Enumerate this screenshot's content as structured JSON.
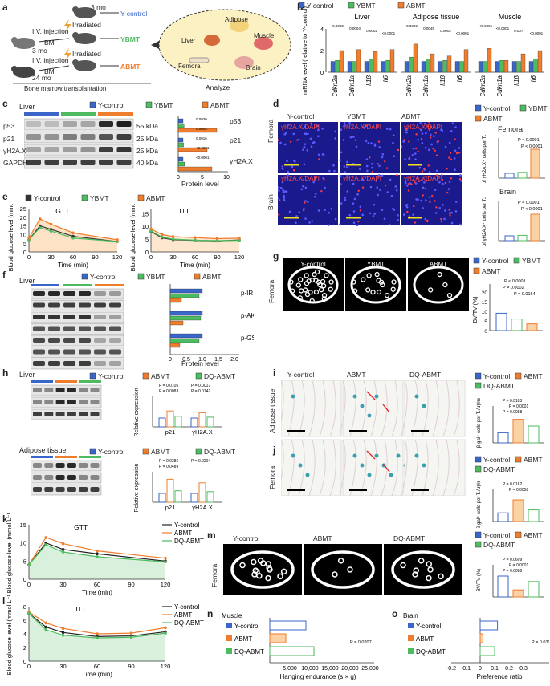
{
  "colors": {
    "ycontrol": "#3a66c9",
    "ybmt": "#4dbb5f",
    "abmt": "#ef7d2e",
    "dqabmt": "#4dbb5f",
    "black": "#222222",
    "gtt_fill": "#fde2c6",
    "itt_fill": "#fde8cf",
    "k_fill": "#d9f1dc"
  },
  "panels": {
    "a": "a",
    "b": "b",
    "c": "c",
    "d": "d",
    "e": "e",
    "f": "f",
    "g": "g",
    "h": "h",
    "i": "i",
    "j": "j",
    "k": "k",
    "l": "l",
    "m": "m",
    "n": "n",
    "o": "o"
  },
  "legend": {
    "y_control": "Y-control",
    "ybmt": "YBMT",
    "abmt": "ABMT",
    "dq_abmt": "DQ-ABMT"
  },
  "a": {
    "age_young": "3 mo",
    "age_old": "24 mo",
    "iv_injection": "I.V. injection",
    "bm": "BM",
    "irradiated": "Irradiated",
    "ycontrol": "Y-control",
    "ybmt": "YBMT",
    "abmt": "ABMT",
    "bmt": "Bone marrow transplantation",
    "analyze": "Analyze",
    "organs": [
      "Adipose",
      "Liver",
      "Muscle",
      "Femora",
      "Brain"
    ]
  },
  "b": {
    "ylabel": "mRNA level (relative to Y-control)",
    "tissues": [
      "Liver",
      "Adipose tissue",
      "Muscle"
    ],
    "genes": [
      "Cdkn2a",
      "Cdkn1a",
      "Il1β",
      "Il6"
    ],
    "yticks": [
      "0",
      "2",
      "4"
    ],
    "pvalues": [
      [
        "0.0002",
        "0.0004",
        "0.0002",
        "<0.0001"
      ],
      [
        "0.0002",
        "0.0049",
        "0.0002",
        "<0.0001"
      ],
      [
        "<0.0001",
        "<0.0001",
        "0.0077",
        "<0.0001"
      ]
    ]
  },
  "chart_data": [
    {
      "panel": "b",
      "type": "bar",
      "groups": [
        "Liver",
        "Adipose tissue",
        "Muscle"
      ],
      "categories": [
        "Cdkn2a",
        "Cdkn1a",
        "Il1β",
        "Il6"
      ],
      "ylabel": "mRNA level (relative to Y-control)",
      "ylim": [
        0,
        4
      ],
      "series": [
        {
          "name": "Y-control",
          "values": [
            [
              1,
              1,
              1,
              1
            ],
            [
              1,
              1,
              1,
              1
            ],
            [
              1,
              1,
              1,
              1
            ]
          ]
        },
        {
          "name": "YBMT",
          "values": [
            [
              1.1,
              1.0,
              1.2,
              1.1
            ],
            [
              1.4,
              1.2,
              1.1,
              1.0
            ],
            [
              1.0,
              1.1,
              1.0,
              1.2
            ]
          ]
        },
        {
          "name": "ABMT",
          "values": [
            [
              2.0,
              2.1,
              1.9,
              2.1
            ],
            [
              2.6,
              1.7,
              1.5,
              2.1
            ],
            [
              2.2,
              1.1,
              1.7,
              2.0
            ]
          ]
        }
      ]
    },
    {
      "panel": "e",
      "type": "line",
      "title": "GTT",
      "x": [
        0,
        15,
        30,
        60,
        120
      ],
      "xlabel": "Time (min)",
      "ylabel": "Blood glucose level (mmol L⁻¹)",
      "ylim": [
        0,
        25
      ],
      "series": [
        {
          "name": "Y-control",
          "values": [
            7,
            15,
            13,
            9,
            6
          ]
        },
        {
          "name": "YBMT",
          "values": [
            7,
            14,
            12,
            8,
            6
          ]
        },
        {
          "name": "ABMT",
          "values": [
            8,
            19,
            16,
            11,
            7
          ]
        }
      ]
    },
    {
      "panel": "e",
      "type": "line",
      "title": "ITT",
      "x": [
        0,
        15,
        30,
        60,
        90,
        120
      ],
      "xlabel": "Time (min)",
      "ylabel": "Blood glucose level (mmol L⁻¹)",
      "ylim": [
        0,
        17
      ],
      "series": [
        {
          "name": "Y-control",
          "values": [
            8,
            5.5,
            4.8,
            4.5,
            4.3,
            4.7
          ]
        },
        {
          "name": "YBMT",
          "values": [
            8.2,
            5.8,
            5.0,
            4.6,
            4.4,
            4.5
          ]
        },
        {
          "name": "ABMT",
          "values": [
            9,
            6.8,
            6.0,
            5.6,
            5.2,
            5.4
          ]
        }
      ]
    },
    {
      "panel": "k",
      "type": "line",
      "title": "GTT",
      "x": [
        0,
        15,
        30,
        60,
        120
      ],
      "xlabel": "Time (min)",
      "ylabel": "Blood glucose level (mmol L⁻¹)",
      "ylim": [
        0,
        15
      ],
      "series": [
        {
          "name": "Y-control",
          "values": [
            4,
            10,
            8.2,
            7,
            5
          ]
        },
        {
          "name": "ABMT",
          "values": [
            4,
            11.5,
            9.8,
            7.8,
            5.8
          ]
        },
        {
          "name": "DQ-ABMT",
          "values": [
            4,
            9.5,
            7.5,
            6.2,
            4.8
          ]
        }
      ]
    },
    {
      "panel": "l",
      "type": "line",
      "title": "ITT",
      "x": [
        0,
        15,
        30,
        60,
        90,
        120
      ],
      "xlabel": "Time (min)",
      "ylabel": "Blood glucose level (mmol L⁻¹)",
      "ylim": [
        0,
        8
      ],
      "series": [
        {
          "name": "Y-control",
          "values": [
            7,
            5,
            4.2,
            3.6,
            3.7,
            4.3
          ]
        },
        {
          "name": "ABMT",
          "values": [
            7.2,
            5.6,
            4.8,
            4.0,
            4.1,
            4.9
          ]
        },
        {
          "name": "DQ-ABMT",
          "values": [
            7,
            4.6,
            3.8,
            3.4,
            3.5,
            4.1
          ]
        }
      ]
    },
    {
      "panel": "n",
      "type": "bar",
      "orientation": "horizontal",
      "categories": [
        "Y-control",
        "ABMT",
        "DQ-ABMT"
      ],
      "values": [
        9000,
        4000,
        11000
      ],
      "xlabel": "Hanging endurance (s × g)",
      "xlim": [
        0,
        25000
      ],
      "pvalue": "P = 0.0207"
    },
    {
      "panel": "o",
      "type": "bar",
      "orientation": "horizontal",
      "categories": [
        "Y-control",
        "ABMT",
        "DQ-ABMT"
      ],
      "values": [
        0.12,
        0.02,
        0.1
      ],
      "xlabel": "Preference ratio",
      "xlim": [
        -0.2,
        0.3
      ],
      "pvalue": "P = 0.0307"
    }
  ],
  "c": {
    "tissue": "Liver",
    "proteins": [
      "p53",
      "p21",
      "γH2A.X",
      "GAPDH"
    ],
    "kda": [
      "55 kDa",
      "25 kDa",
      "25 kDa",
      "40 kDa"
    ],
    "plabels": [
      "p53",
      "p21",
      "γH2A.X"
    ],
    "pvals": [
      "0.0030",
      "0.0003",
      "0.0016",
      "<0.0001",
      "<0.0001"
    ],
    "xlabel": "Protein level",
    "xticks": [
      "0",
      "5",
      "10"
    ]
  },
  "d": {
    "cols": [
      "Y-control",
      "YBMT",
      "ABMT"
    ],
    "rows": [
      "Femora",
      "Brain"
    ],
    "stain": "γH2A.X/DAPI",
    "femora_title": "Femora",
    "brain_title": "Brain",
    "ylabel": "Rel.fold of γH2A.X⁺ cells per T.Ar(/mm²)",
    "p1": "P < 0.0001",
    "p2": "P < 0.0001",
    "p3": "P < 0.0001",
    "p4": "P < 0.0001"
  },
  "e": {
    "gtt": "GTT",
    "itt": "ITT",
    "ylabel": "Blood glucose level (mmol L⁻¹)",
    "xlabel": "Time (min)"
  },
  "f": {
    "tissue": "Liver",
    "proteins": [
      "p-IR",
      "t-IR",
      "p-AKT",
      "t-AKT",
      "p-GSK",
      "t-GSK",
      "GAPDH"
    ],
    "kda": [
      "100 kDa",
      "100 kDa",
      "70 kDa",
      "70 kDa",
      "55 kDa",
      "55 kDa",
      "40 kDa"
    ],
    "plabels": [
      "p-IR",
      "p-AKT",
      "p-GSK"
    ],
    "xlabel": "Protein level",
    "xticks": [
      "0",
      "0.5",
      "1.0",
      "1.5",
      "2.0"
    ]
  },
  "g": {
    "cols": [
      "Y-control",
      "YBMT",
      "ABMT"
    ],
    "row": "Femora",
    "ylabel": "BV/TV (%)",
    "p1": "P < 0.0001",
    "p2": "P = 0.0002",
    "p3": "P = 0.0164"
  },
  "h": {
    "liver": "Liver",
    "adipose": "Adipose tissue",
    "proteins": [
      "p21",
      "γH2A.X",
      "GAPDH"
    ],
    "kda": [
      "25 kDa",
      "25 kDa",
      "40 kDa"
    ],
    "ylabel": "Relative expression",
    "xcats": [
      "p21",
      "γH2A.X"
    ],
    "liver_p": [
      "P = 0.0105",
      "P = 0.0017",
      "P = 0.0083",
      "P = 0.0142"
    ],
    "adipose_p": [
      "P = 0.0386",
      "P = 0.0204",
      "P = 0.0489"
    ]
  },
  "i": {
    "cols": [
      "Y-control",
      "ABMT",
      "DQ-ABMT"
    ],
    "row": "Adipose tissue",
    "ylabel": "SA-β-gal⁺ cells per T.Ar(/mm²)",
    "p": [
      "P = 0.0183",
      "P = 0.0001",
      "P = 0.0088"
    ]
  },
  "j": {
    "row": "Femora",
    "ylabel": "SA-β-gal⁺ cells per T.Ar(/mm²)",
    "p": [
      "P = 0.0162",
      "P = 0.0058"
    ]
  },
  "k": {
    "title": "GTT",
    "ylabel": "Blood glucose level (mmol L⁻¹)",
    "xlabel": "Time (min)"
  },
  "l": {
    "title": "ITT",
    "ylabel": "Blood glucose level (mmol L⁻¹)",
    "xlabel": "Time (min)"
  },
  "m": {
    "cols": [
      "Y-control",
      "ABMT",
      "DQ-ABMT"
    ],
    "row": "Femora",
    "ylabel": "BV/TV (%)",
    "p": [
      "P = 0.0609",
      "P = 0.0001",
      "P = 0.0088"
    ]
  },
  "n": {
    "row": "Muscle",
    "xlabel": "Hanging endurance (s × g)",
    "p": "P = 0.0207"
  },
  "o": {
    "row": "Brain",
    "xlabel": "Preference ratio",
    "p": "P = 0.0307"
  }
}
